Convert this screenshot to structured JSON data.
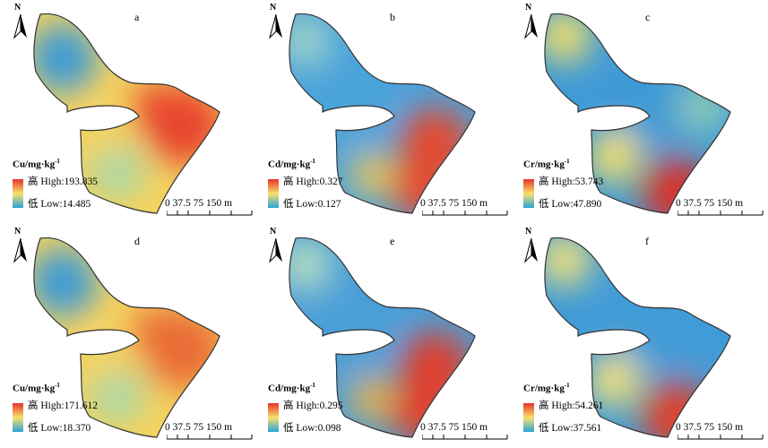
{
  "panels": [
    {
      "id": "a",
      "north": "N",
      "element": "Cu/mg·kg",
      "exp": "-1",
      "high_label": "高 High",
      "high": "193.835",
      "low_label": "低 Low",
      "low": "14.485",
      "scale": "0 37.5 75    150 m",
      "pattern": "east-hot",
      "colors": {
        "nw": "#3a9ad8",
        "center": "#f4d35e",
        "east": "#e8442e",
        "south": "#a8d8a8"
      }
    },
    {
      "id": "b",
      "north": "N",
      "element": "Cd/mg·kg",
      "exp": "-1",
      "high_label": "高 High",
      "high": "0.327",
      "low_label": "低 Low",
      "low": "0.127",
      "scale": "0 37.5 75    150 m",
      "pattern": "southeast-hot",
      "colors": {
        "nw": "#9fd3c7",
        "center": "#4aa3db",
        "east": "#e64a2e",
        "south": "#f0c85a"
      }
    },
    {
      "id": "c",
      "north": "N",
      "element": "Cr/mg·kg",
      "exp": "-1",
      "high_label": "高 High",
      "high": "53.743",
      "low_label": "低 Low",
      "low": "47.890",
      "scale": "0 37.5 75    150 m",
      "pattern": "south-hot",
      "colors": {
        "nw": "#f7e06a",
        "center": "#3d9ad6",
        "east": "#8cc9b6",
        "south": "#d9302a"
      }
    },
    {
      "id": "d",
      "north": "N",
      "element": "Cu/mg·kg",
      "exp": "-1",
      "high_label": "高 High",
      "high": "171.612",
      "low_label": "低 Low",
      "low": "18.370",
      "scale": "0 37.5 75    150 m",
      "pattern": "east-hot",
      "colors": {
        "nw": "#3a9ad8",
        "center": "#f4d35e",
        "east": "#ea6a34",
        "south": "#a8d8a8"
      }
    },
    {
      "id": "e",
      "north": "N",
      "element": "Cd/mg·kg",
      "exp": "-1",
      "high_label": "高 High",
      "high": "0.295",
      "low_label": "低 Low",
      "low": "0.098",
      "scale": "0 37.5 75    150 m",
      "pattern": "southeast-hot",
      "colors": {
        "nw": "#b7ddc2",
        "center": "#4a9fd8",
        "east": "#e23d2a",
        "south": "#f1b24a"
      }
    },
    {
      "id": "f",
      "north": "N",
      "element": "Cr/mg·kg",
      "exp": "-1",
      "high_label": "高 High",
      "high": "54.261",
      "low_label": "低 Low",
      "low": "37.561",
      "scale": "0 37.5 75    150 m",
      "pattern": "south-hot",
      "colors": {
        "nw": "#f5e27a",
        "center": "#3f9bd6",
        "east": "#3f9bd6",
        "south": "#e0402a"
      }
    }
  ],
  "legend_ramp": [
    "#e8312a",
    "#f7e26b",
    "#2aa3d8"
  ]
}
